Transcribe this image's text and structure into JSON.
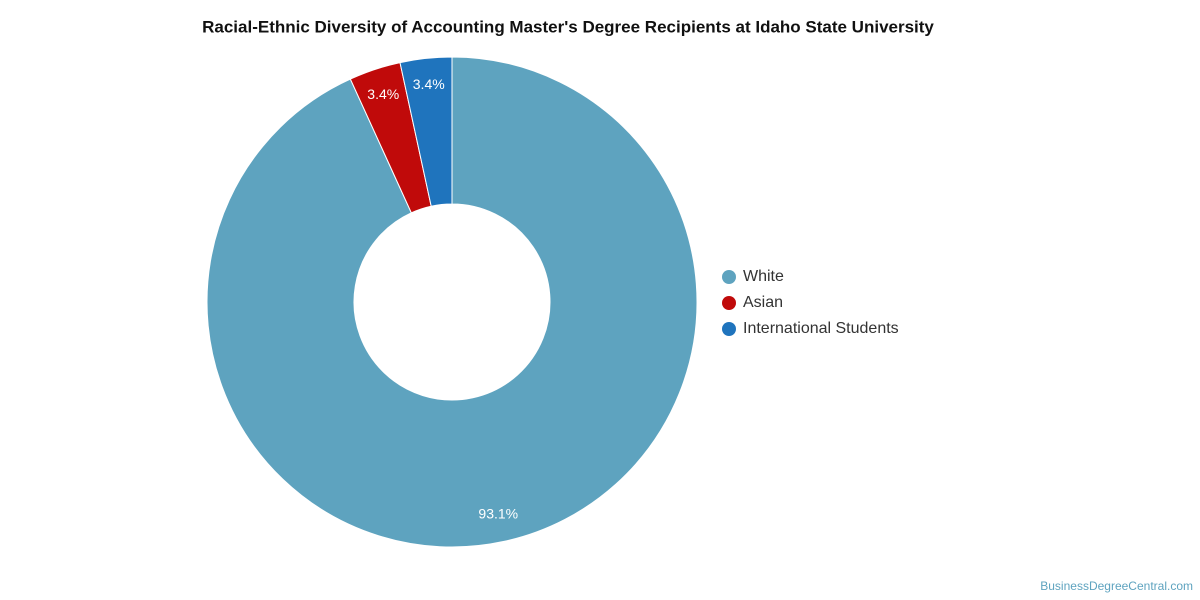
{
  "chart_data": {
    "type": "donut",
    "title": "Racial-Ethnic Diversity of Accounting Master's Degree Recipients at Idaho State University",
    "categories": [
      "White",
      "Asian",
      "International Students"
    ],
    "values": [
      93.1,
      3.4,
      3.4
    ],
    "value_labels": [
      "93.1%",
      "3.4%",
      "3.4%"
    ],
    "colors": [
      "#5ea3bf",
      "#c00a0a",
      "#1f74bd"
    ],
    "legend": "right"
  },
  "footer": "BusinessDegreeCentral.com"
}
